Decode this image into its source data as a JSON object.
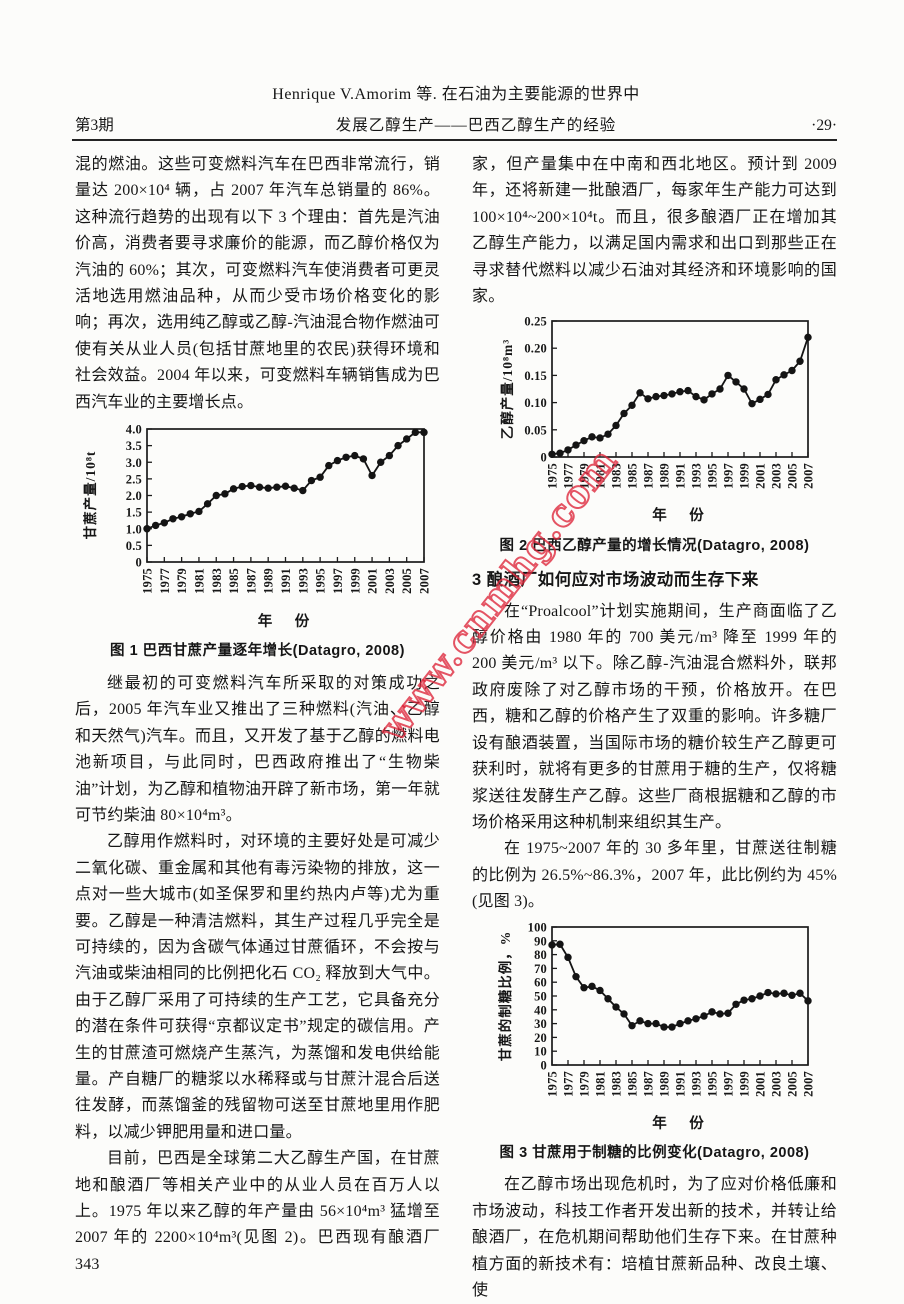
{
  "header": {
    "line1": "Henrique V.Amorim 等. 在石油为主要能源的世界中",
    "issue": "第3期",
    "title": "发展乙醇生产——巴西乙醇生产的经验",
    "page_no": "·29·"
  },
  "watermark": "www.cnmhg.com",
  "colors": {
    "ink": "#1b1b1b",
    "paper": "#fcfcfa",
    "watermark_red": "#dd2438"
  },
  "left_column": {
    "para1": "混的燃油。这些可变燃料汽车在巴西非常流行，销量达 200×10⁴ 辆，占 2007 年汽车总销量的 86%。这种流行趋势的出现有以下 3 个理由：首先是汽油价高，消费者要寻求廉价的能源，而乙醇价格仅为汽油的 60%；其次，可变燃料汽车使消费者可更灵活地选用燃油品种，从而少受市场价格变化的影响；再次，选用纯乙醇或乙醇-汽油混合物作燃油可使有关从业人员(包括甘蔗地里的农民)获得环境和社会效益。2004 年以来，可变燃料车辆销售成为巴西汽车业的主要增长点。",
    "para2": "继最初的可变燃料汽车所采取的对策成功之后，2005 年汽车业又推出了三种燃料(汽油、乙醇和天然气)汽车。而且，又开发了基于乙醇的燃料电池新项目，与此同时，巴西政府推出了“生物柴油”计划，为乙醇和植物油开辟了新市场，第一年就可节约柴油 80×10⁴m³。",
    "para3": "乙醇用作燃料时，对环境的主要好处是可减少二氧化碳、重金属和其他有毒污染物的排放，这一点对一些大城市(如圣保罗和里约热内卢等)尤为重要。乙醇是一种清洁燃料，其生产过程几乎完全是可持续的，因为含碳气体通过甘蔗循环，不会按与汽油或柴油相同的比例把化石 CO₂ 释放到大气中。由于乙醇厂采用了可持续的生产工艺，它具备充分的潜在条件可获得“京都议定书”规定的碳信用。产生的甘蔗渣可燃烧产生蒸汽，为蒸馏和发电供给能量。产自糖厂的糖浆以水稀释或与甘蔗汁混合后送往发酵，而蒸馏釜的残留物可送至甘蔗地里用作肥料，以减少钾肥用量和进口量。",
    "para4": "目前，巴西是全球第二大乙醇生产国，在甘蔗地和酿酒厂等相关产业中的从业人员在百万人以上。1975 年以来乙醇的年产量由 56×10⁴m³ 猛增至 2007 年的 2200×10⁴m³(见图 2)。巴西现有酿酒厂 343"
  },
  "right_column": {
    "para1": "家，但产量集中在中南和西北地区。预计到 2009 年，还将新建一批酿酒厂，每家年生产能力可达到 100×10⁴~200×10⁴t。而且，很多酿酒厂正在增加其乙醇生产能力，以满足国内需求和出口到那些正在寻求替代燃料以减少石油对其经济和环境影响的国家。",
    "section3_heading": "3 酿酒厂如何应对市场波动而生存下来",
    "para2": "在“Proalcool”计划实施期间，生产商面临了乙醇价格由 1980 年的 700 美元/m³ 降至 1999 年的 200 美元/m³ 以下。除乙醇-汽油混合燃料外，联邦政府废除了对乙醇市场的干预，价格放开。在巴西，糖和乙醇的价格产生了双重的影响。许多糖厂设有酿酒装置，当国际市场的糖价较生产乙醇更可获利时，就将有更多的甘蔗用于糖的生产，仅将糖浆送往发酵生产乙醇。这些厂商根据糖和乙醇的市场价格采用这种机制来组织其生产。",
    "para3": "在 1975~2007 年的 30 多年里，甘蔗送往制糖的比例为 26.5%~86.3%，2007 年，此比例约为 45%(见图 3)。",
    "para4": "在乙醇市场出现危机时，为了应对价格低廉和市场波动，科技工作者开发出新的技术，并转让给酿酒厂，在危机期间帮助他们生存下来。在甘蔗种植方面的新技术有：培植甘蔗新品种、改良土壤、使"
  },
  "chart_data": [
    {
      "type": "line",
      "title": "图 1 巴西甘蔗产量逐年增长(Datagro, 2008)",
      "xlabel": "年　份",
      "ylabel": "甘蔗产量/10⁸t",
      "x": [
        1975,
        1976,
        1977,
        1978,
        1979,
        1980,
        1981,
        1982,
        1983,
        1984,
        1985,
        1986,
        1987,
        1988,
        1989,
        1990,
        1991,
        1992,
        1993,
        1994,
        1995,
        1996,
        1997,
        1998,
        1999,
        2000,
        2001,
        2002,
        2003,
        2004,
        2005,
        2006,
        2007
      ],
      "values": [
        1.0,
        1.1,
        1.18,
        1.3,
        1.36,
        1.45,
        1.52,
        1.75,
        2.0,
        2.05,
        2.2,
        2.27,
        2.3,
        2.25,
        2.22,
        2.25,
        2.28,
        2.22,
        2.15,
        2.45,
        2.55,
        2.9,
        3.05,
        3.15,
        3.2,
        3.1,
        2.6,
        3.0,
        3.2,
        3.5,
        3.7,
        3.9,
        3.9
      ],
      "ylim": [
        0,
        4.0
      ],
      "ytick_labels": [
        "0",
        "0.5",
        "1.0",
        "1.5",
        "2.0",
        "2.5",
        "3.0",
        "3.5",
        "4.0"
      ],
      "xtick_interval": 2,
      "grid": false,
      "marker": "filled-circle",
      "legend": "none"
    },
    {
      "type": "line",
      "title": "图 2 巴西乙醇产量的增长情况(Datagro, 2008)",
      "xlabel": "年　份",
      "ylabel": "乙醇产量/10⁸m³",
      "x": [
        1975,
        1976,
        1977,
        1978,
        1979,
        1980,
        1981,
        1982,
        1983,
        1984,
        1985,
        1986,
        1987,
        1988,
        1989,
        1990,
        1991,
        1992,
        1993,
        1994,
        1995,
        1996,
        1997,
        1998,
        1999,
        2000,
        2001,
        2002,
        2003,
        2004,
        2005,
        2006,
        2007
      ],
      "values": [
        0.005,
        0.007,
        0.013,
        0.022,
        0.03,
        0.037,
        0.035,
        0.042,
        0.058,
        0.08,
        0.095,
        0.118,
        0.107,
        0.111,
        0.113,
        0.116,
        0.12,
        0.122,
        0.111,
        0.105,
        0.116,
        0.125,
        0.15,
        0.138,
        0.125,
        0.098,
        0.106,
        0.115,
        0.142,
        0.151,
        0.159,
        0.176,
        0.22
      ],
      "ylim": [
        0,
        0.25
      ],
      "ytick_labels": [
        "0",
        "0.05",
        "0.10",
        "0.15",
        "0.20",
        "0.25"
      ],
      "xtick_interval": 2,
      "grid": false,
      "marker": "filled-circle",
      "legend": "none"
    },
    {
      "type": "line",
      "title": "图 3 甘蔗用于制糖的比例变化(Datagro, 2008)",
      "xlabel": "年　份",
      "ylabel": "甘蔗的制糖比例，%",
      "x": [
        1975,
        1976,
        1977,
        1978,
        1979,
        1980,
        1981,
        1982,
        1983,
        1984,
        1985,
        1986,
        1987,
        1988,
        1989,
        1990,
        1991,
        1992,
        1993,
        1994,
        1995,
        1996,
        1997,
        1998,
        1999,
        2000,
        2001,
        2002,
        2003,
        2004,
        2005,
        2006,
        2007
      ],
      "values": [
        87,
        87.5,
        78,
        64,
        56,
        57,
        54,
        48,
        42,
        37,
        28.5,
        32,
        30,
        30,
        27.5,
        27.5,
        30,
        32,
        33.5,
        35.5,
        38.5,
        37,
        37.5,
        44,
        47,
        48,
        50,
        52.5,
        51.5,
        52,
        50.5,
        52,
        46.5
      ],
      "ylim": [
        0,
        100
      ],
      "ytick_labels": [
        "0",
        "10",
        "20",
        "30",
        "40",
        "50",
        "60",
        "70",
        "80",
        "90",
        "100"
      ],
      "xtick_interval": 2,
      "grid": false,
      "marker": "filled-circle",
      "legend": "none"
    }
  ]
}
